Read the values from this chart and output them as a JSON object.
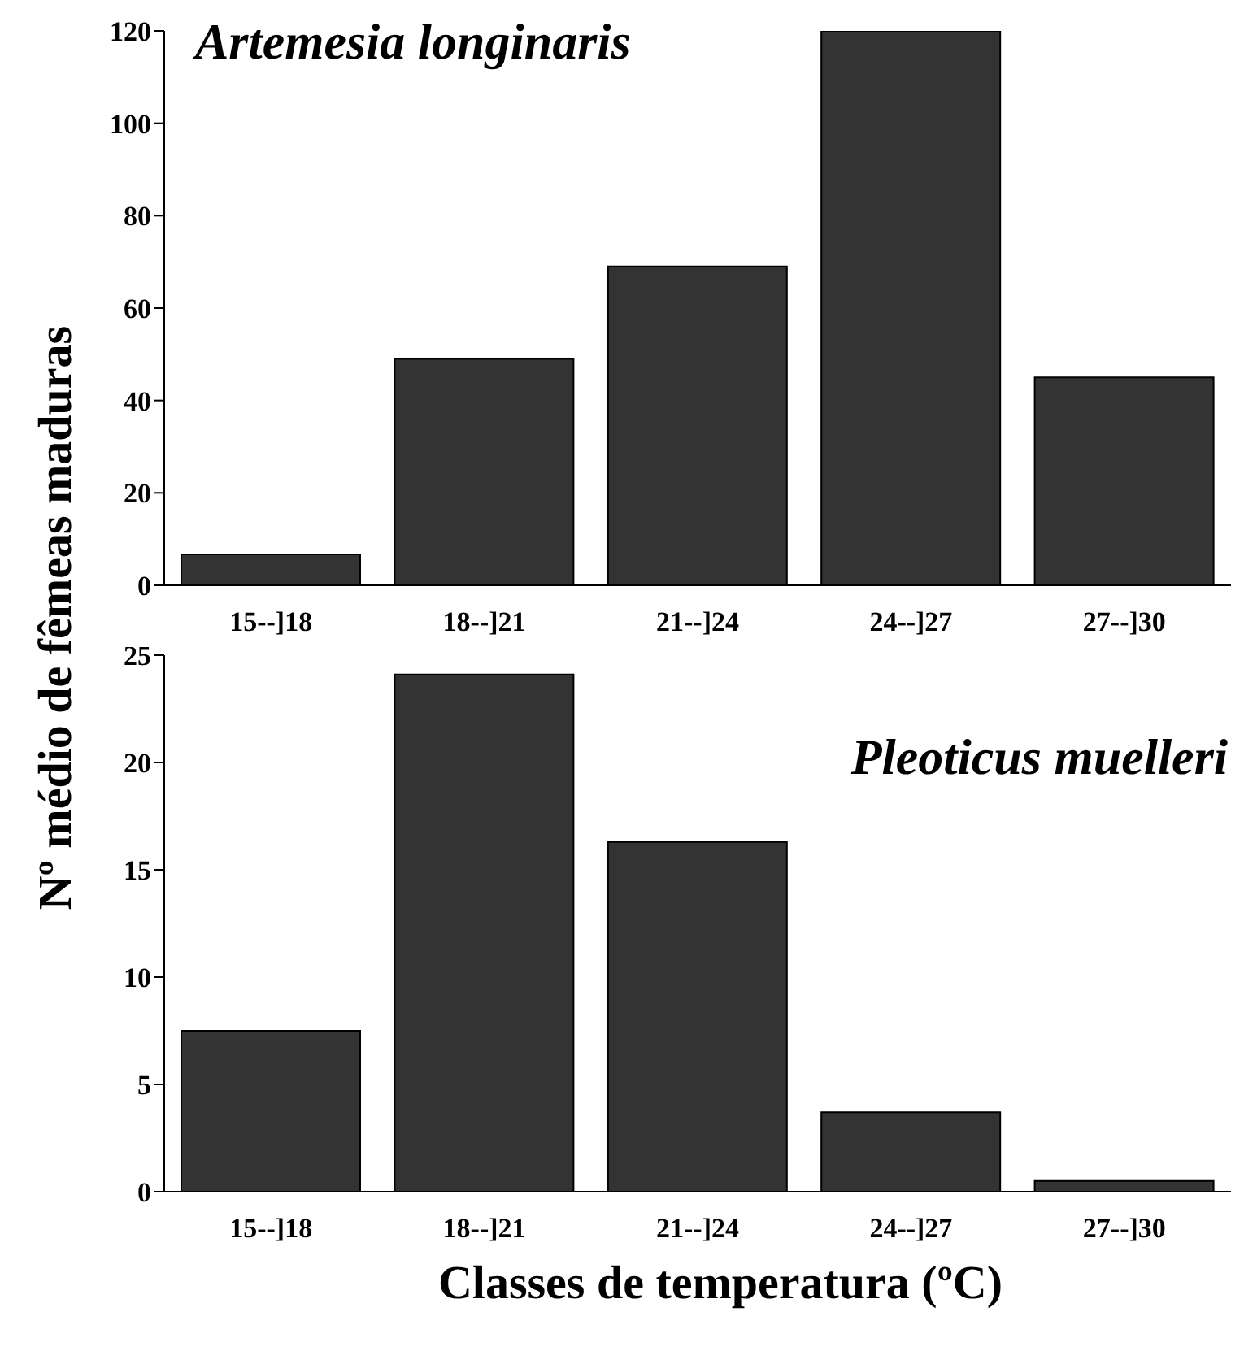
{
  "chart_data": [
    {
      "type": "bar",
      "title": "Artemesia longinaris",
      "ylabel": "Nº médio de fêmeas maduras",
      "categories": [
        "15--]18",
        "18--]21",
        "21--]24",
        "24--]27",
        "27--]30"
      ],
      "values": [
        6.7,
        49,
        69,
        120,
        45
      ],
      "color": "#333333",
      "ylim": [
        0,
        120
      ],
      "yticks": [
        0,
        20,
        40,
        60,
        80,
        100,
        120
      ],
      "grid": false,
      "legend": false
    },
    {
      "type": "bar",
      "title": "Pleoticus muelleri",
      "xlabel": "Classes de temperatura (ºC)",
      "categories": [
        "15--]18",
        "18--]21",
        "21--]24",
        "24--]27",
        "27--]30"
      ],
      "values": [
        7.5,
        24.1,
        16.3,
        3.7,
        0.5
      ],
      "color": "#333333",
      "ylim": [
        0,
        25
      ],
      "yticks": [
        0,
        5,
        10,
        15,
        20,
        25
      ],
      "grid": false,
      "legend": false
    }
  ]
}
